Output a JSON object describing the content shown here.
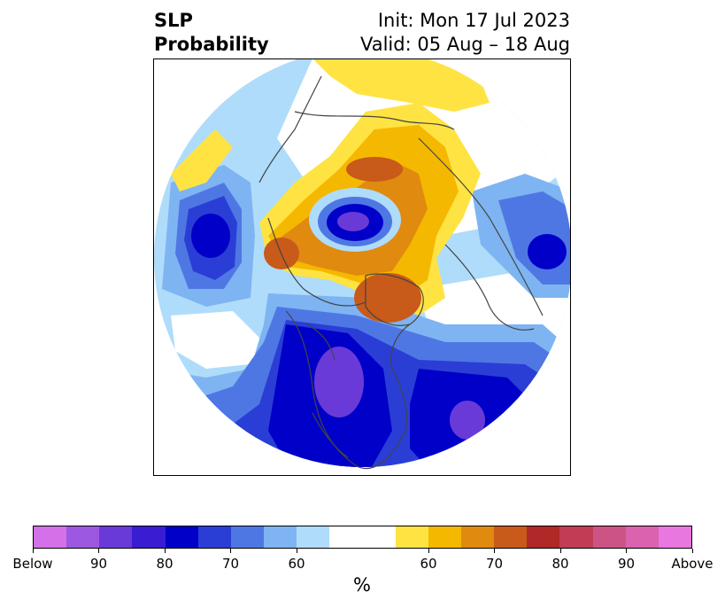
{
  "title": {
    "left_line1": "SLP",
    "left_line2": "Probability",
    "right_line1": "Init: Mon 17 Jul 2023",
    "right_line2": "Valid: 05 Aug – 18 Aug"
  },
  "colorbar": {
    "unit": "%",
    "colors": [
      "#d470e8",
      "#9c58e0",
      "#6a3ad8",
      "#3a1dd2",
      "#0000c8",
      "#2a3ed6",
      "#4f77e4",
      "#7eb4f2",
      "#afdcfa",
      "#ffffff",
      "#ffe342",
      "#f5b800",
      "#e08a10",
      "#c85a1a",
      "#b02828",
      "#c23c56",
      "#cc5484",
      "#da62ae",
      "#e878e0"
    ],
    "tick_labels": [
      "Below",
      "90",
      "80",
      "70",
      "60",
      "60",
      "70",
      "80",
      "90",
      "Above"
    ]
  },
  "map": {
    "projection": "north-polar-stereographic",
    "colors": {
      "below_strong": "#6a3ad8",
      "below_mid": "#0000c8",
      "below_light": "#2a3ed6",
      "below_lighter": "#4f77e4",
      "below_lightest": "#7eb4f2",
      "below_faint": "#afdcfa",
      "above_faint": "#ffe342",
      "above_light": "#f5b800",
      "above_mid": "#e08a10",
      "above_strong": "#c85a1a",
      "coastline": "#444444"
    }
  }
}
